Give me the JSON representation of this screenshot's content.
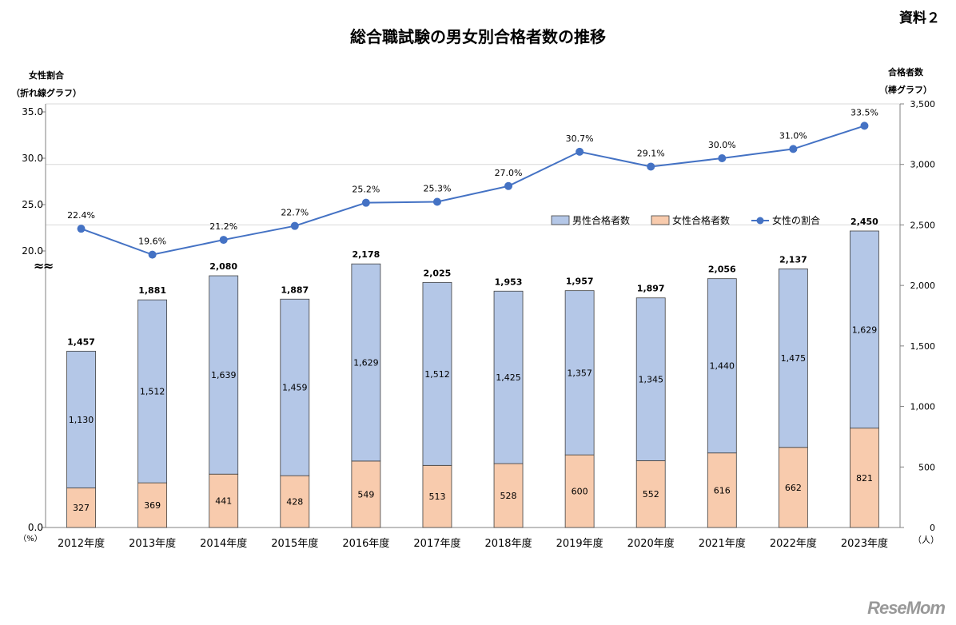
{
  "doc_label": "資料２",
  "left_axis_title": [
    "女性割合",
    "（折れ線グラフ）"
  ],
  "right_axis_title": [
    "合格者数",
    "（棒グラフ）"
  ],
  "watermark": "ReseMom",
  "chart_data": {
    "type": "bar+line",
    "title": "総合職試験の男女別合格者数の推移",
    "categories": [
      "2012年度",
      "2013年度",
      "2014年度",
      "2015年度",
      "2016年度",
      "2017年度",
      "2018年度",
      "2019年度",
      "2020年度",
      "2021年度",
      "2022年度",
      "2023年度"
    ],
    "series": [
      {
        "name": "男性合格者数",
        "kind": "stacked-bar",
        "color": "#b4c7e7",
        "values": [
          1130,
          1512,
          1639,
          1459,
          1629,
          1512,
          1425,
          1357,
          1345,
          1440,
          1475,
          1629
        ]
      },
      {
        "name": "女性合格者数",
        "kind": "stacked-bar",
        "color": "#f8cbad",
        "values": [
          327,
          369,
          441,
          428,
          549,
          513,
          528,
          600,
          552,
          616,
          662,
          821
        ]
      },
      {
        "name": "女性の割合",
        "kind": "line",
        "color": "#4472c4",
        "values": [
          22.4,
          19.6,
          21.2,
          22.7,
          25.2,
          25.3,
          27.0,
          30.7,
          29.1,
          30.0,
          31.0,
          33.5
        ],
        "labels": [
          "22.4%",
          "19.6%",
          "21.2%",
          "22.7%",
          "25.2%",
          "25.3%",
          "27.0%",
          "30.7%",
          "29.1%",
          "30.0%",
          "31.0%",
          "33.5%"
        ]
      }
    ],
    "totals": [
      1457,
      1881,
      2080,
      1887,
      2178,
      2025,
      1953,
      1957,
      1897,
      2056,
      2137,
      2450
    ],
    "total_labels": [
      "1,457",
      "1,881",
      "2,080",
      "1,887",
      "2,178",
      "2,025",
      "1,953",
      "1,957",
      "1,897",
      "2,056",
      "2,137",
      "2,450"
    ],
    "male_labels": [
      "1,130",
      "1,512",
      "1,639",
      "1,459",
      "1,629",
      "1,512",
      "1,425",
      "1,357",
      "1,345",
      "1,440",
      "1,475",
      "1,629"
    ],
    "female_labels": [
      "327",
      "369",
      "441",
      "428",
      "549",
      "513",
      "528",
      "600",
      "552",
      "616",
      "662",
      "821"
    ],
    "left_axis": {
      "ticks": [
        0,
        20,
        25,
        30,
        35
      ],
      "tick_labels": [
        "0.0",
        "20.0",
        "25.0",
        "30.0",
        "35.0"
      ],
      "unit": "（%）",
      "break": "≈"
    },
    "right_axis": {
      "ylim": [
        0,
        3500
      ],
      "ticks": [
        0,
        500,
        1000,
        1500,
        2000,
        2500,
        3000,
        3500
      ],
      "tick_labels": [
        "0",
        "500",
        "1,000",
        "1,500",
        "2,000",
        "2,500",
        "3,000",
        "3,500"
      ],
      "unit": "（人）"
    },
    "legend": {
      "position": "right",
      "items": [
        "男性合格者数",
        "女性合格者数",
        "女性の割合"
      ]
    }
  }
}
